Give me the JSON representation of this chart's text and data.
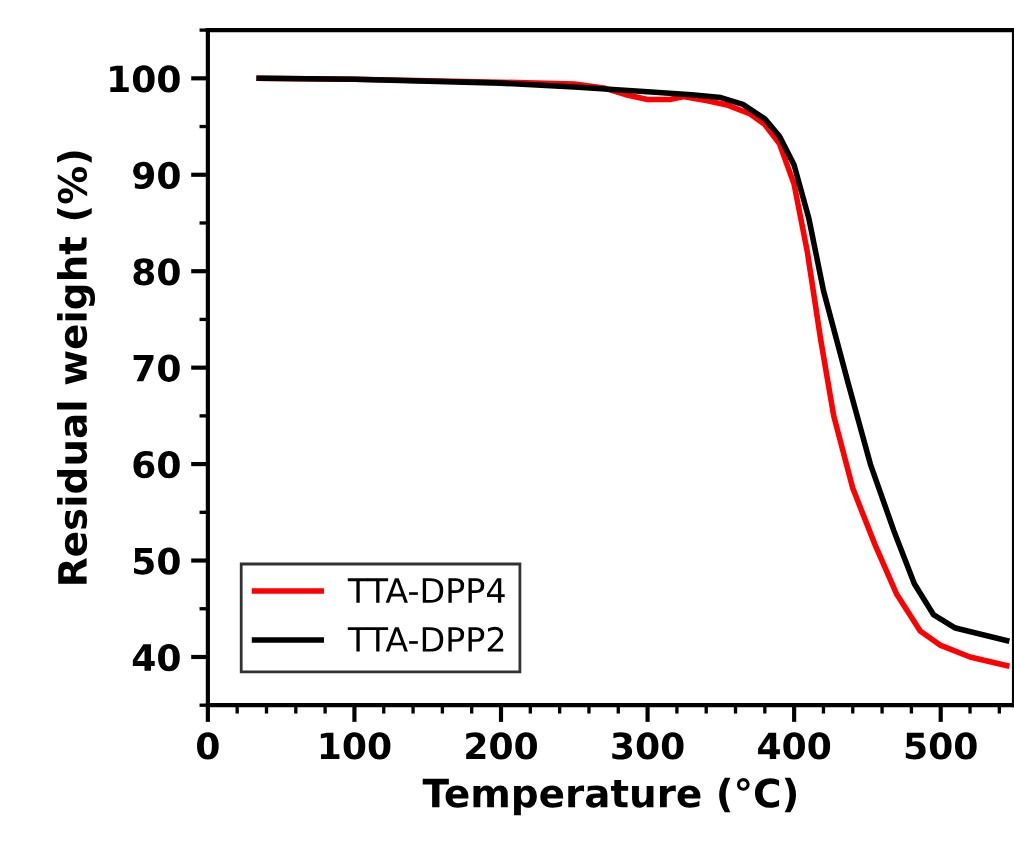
{
  "chart_data": {
    "type": "line",
    "xlabel": "Temperature (°C)",
    "ylabel": "Residual weight (%)",
    "xlim": [
      0,
      550
    ],
    "ylim": [
      35,
      105
    ],
    "xticks": [
      0,
      100,
      200,
      300,
      400,
      500
    ],
    "yticks": [
      40,
      50,
      60,
      70,
      80,
      90,
      100
    ],
    "grid": false,
    "legend": "bottom left",
    "marker": "none",
    "line_style": "solid",
    "series": [
      {
        "name": "TTA-DPP4",
        "color": "#ff0000",
        "x": [
          35,
          100,
          200,
          250,
          270,
          285,
          300,
          315,
          325,
          340,
          355,
          370,
          380,
          390,
          400,
          409,
          418,
          427,
          440,
          455,
          470,
          486,
          500,
          520,
          545
        ],
        "values": [
          100,
          99.9,
          99.6,
          99.4,
          99,
          98.3,
          97.8,
          97.8,
          98.1,
          97.7,
          97.2,
          96.3,
          95.2,
          93.2,
          89,
          82,
          73,
          65,
          57.5,
          51.7,
          46.5,
          42.7,
          41.2,
          40,
          39.1
        ]
      },
      {
        "name": "TTA-DPP2",
        "color": "#000000",
        "x": [
          35,
          100,
          200,
          250,
          300,
          330,
          350,
          365,
          380,
          390,
          400,
          410,
          420,
          437,
          452,
          468,
          482,
          495,
          510,
          545
        ],
        "values": [
          100,
          99.9,
          99.5,
          99.1,
          98.6,
          98.3,
          98,
          97.3,
          95.8,
          94,
          91,
          85.5,
          78,
          68.3,
          60,
          53.1,
          47.6,
          44.4,
          43,
          41.7
        ]
      }
    ]
  }
}
